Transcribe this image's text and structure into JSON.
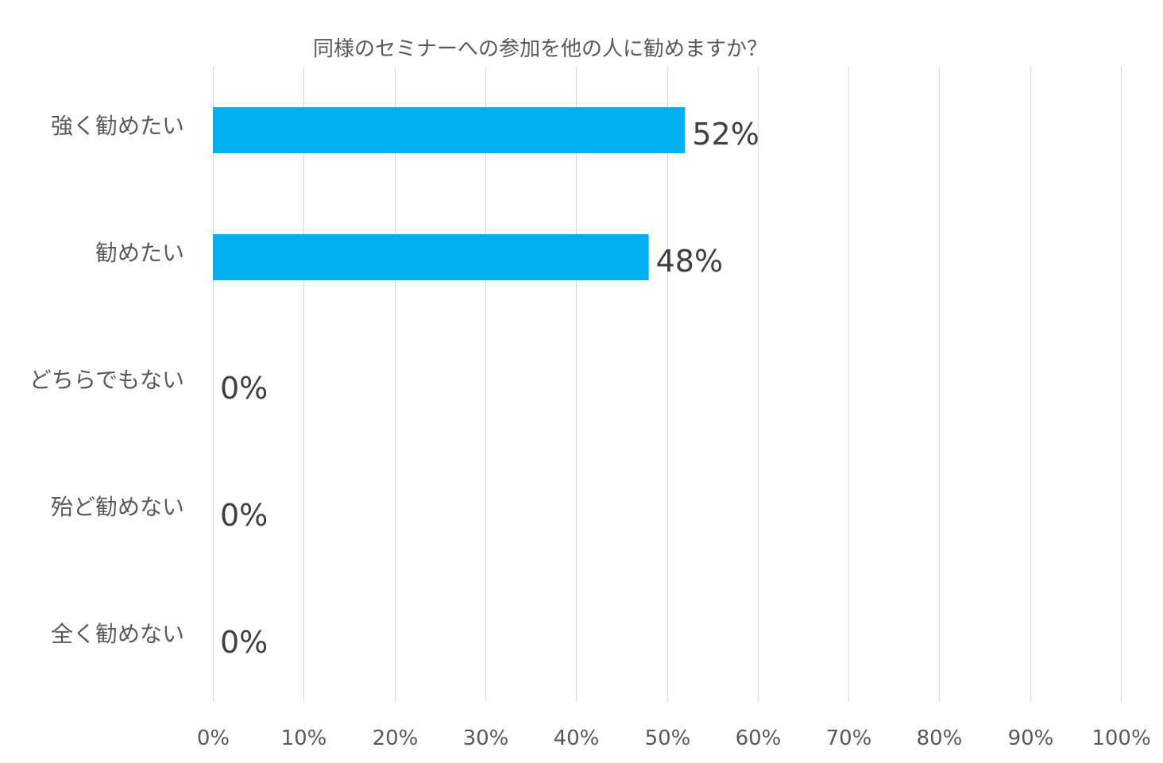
{
  "chart_data": {
    "type": "bar",
    "orientation": "horizontal",
    "title": "同様のセミナーへの参加を他の人に勧めますか？",
    "categories": [
      "強く勧めたい",
      "勧めたい",
      "どちらでもない",
      "殆ど勧めない",
      "全く勧めない"
    ],
    "values": [
      52,
      48,
      0,
      0,
      0
    ],
    "data_labels": [
      "52%",
      "48%",
      "0%",
      "0%",
      "0%"
    ],
    "xlim": [
      0,
      100
    ],
    "x_ticks": [
      0,
      10,
      20,
      30,
      40,
      50,
      60,
      70,
      80,
      90,
      100
    ],
    "x_tick_labels": [
      "0%",
      "10%",
      "20%",
      "30%",
      "40%",
      "50%",
      "60%",
      "70%",
      "80%",
      "90%",
      "100%"
    ],
    "xlabel": "",
    "ylabel": "",
    "grid": true,
    "legend": "none",
    "colors": {
      "bar": "#00B0F0",
      "grid": "#D9D9D9",
      "text": "#595959",
      "label": "#404040"
    }
  }
}
